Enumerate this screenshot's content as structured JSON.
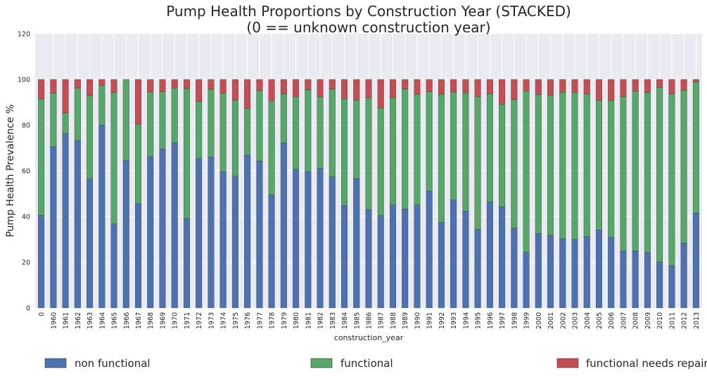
{
  "chart_data": {
    "type": "bar",
    "stacked": true,
    "title_line1": "Pump Health Proportions by Construction Year (STACKED)",
    "title_line2": "(0 == unknown construction year)",
    "xlabel": "construction_year",
    "ylabel": "Pump Health Prevalence %",
    "ylim": [
      0,
      120
    ],
    "yticks": [
      0,
      20,
      40,
      60,
      80,
      100,
      120
    ],
    "grid": true,
    "legend_position": "bottom",
    "categories": [
      "0",
      "1960",
      "1961",
      "1962",
      "1963",
      "1964",
      "1965",
      "1966",
      "1967",
      "1968",
      "1969",
      "1970",
      "1971",
      "1972",
      "1973",
      "1974",
      "1975",
      "1976",
      "1977",
      "1978",
      "1979",
      "1980",
      "1981",
      "1982",
      "1983",
      "1984",
      "1985",
      "1986",
      "1987",
      "1988",
      "1989",
      "1990",
      "1991",
      "1992",
      "1993",
      "1994",
      "1995",
      "1996",
      "1997",
      "1998",
      "1999",
      "2000",
      "2001",
      "2002",
      "2003",
      "2004",
      "2005",
      "2006",
      "2007",
      "2008",
      "2009",
      "2010",
      "2011",
      "2012",
      "2013"
    ],
    "series": [
      {
        "name": "non functional",
        "color": "#4c72b0",
        "values": [
          40.5,
          70.5,
          76.3,
          73.3,
          56.4,
          80.0,
          36.8,
          64.5,
          45.6,
          66.2,
          69.5,
          72.3,
          39.1,
          65.3,
          66.0,
          59.6,
          57.6,
          66.8,
          64.3,
          49.5,
          72.2,
          60.6,
          59.6,
          61.0,
          57.3,
          44.8,
          56.6,
          43.0,
          40.4,
          45.0,
          43.3,
          45.0,
          51.1,
          37.4,
          47.3,
          42.4,
          34.3,
          46.3,
          44.3,
          34.9,
          24.4,
          32.5,
          31.8,
          30.2,
          29.9,
          31.2,
          34.0,
          30.8,
          24.9,
          24.9,
          24.3,
          20.2,
          18.5,
          28.3,
          41.5
        ]
      },
      {
        "name": "functional",
        "color": "#55a868",
        "values": [
          51.0,
          23.5,
          9.0,
          23.0,
          36.5,
          17.5,
          57.5,
          35.5,
          34.8,
          28.3,
          25.1,
          23.9,
          56.9,
          25.0,
          29.7,
          34.3,
          33.3,
          20.6,
          30.8,
          41.2,
          21.5,
          32.0,
          35.8,
          31.5,
          38.5,
          46.8,
          34.3,
          49.0,
          47.0,
          47.0,
          52.5,
          48.5,
          43.5,
          56.1,
          47.2,
          51.7,
          58.2,
          47.5,
          44.9,
          56.3,
          70.6,
          60.9,
          61.3,
          64.2,
          64.5,
          62.4,
          56.9,
          60.0,
          67.6,
          69.9,
          69.9,
          76.3,
          75.2,
          67.0,
          57.4
        ]
      },
      {
        "name": "functional needs repair",
        "color": "#c44e52",
        "values": [
          8.5,
          6.0,
          14.7,
          3.7,
          7.1,
          2.5,
          5.7,
          0.0,
          19.6,
          5.5,
          5.4,
          3.8,
          4.0,
          9.7,
          4.3,
          6.1,
          9.1,
          12.6,
          4.9,
          9.3,
          6.3,
          7.4,
          4.6,
          7.5,
          4.2,
          8.4,
          9.1,
          8.0,
          12.6,
          8.0,
          4.2,
          6.5,
          5.4,
          6.5,
          5.5,
          5.9,
          7.5,
          6.2,
          10.8,
          8.8,
          5.0,
          6.6,
          6.9,
          5.6,
          5.6,
          6.4,
          9.1,
          9.2,
          7.5,
          5.2,
          5.8,
          3.5,
          6.3,
          4.7,
          1.1
        ]
      }
    ]
  }
}
